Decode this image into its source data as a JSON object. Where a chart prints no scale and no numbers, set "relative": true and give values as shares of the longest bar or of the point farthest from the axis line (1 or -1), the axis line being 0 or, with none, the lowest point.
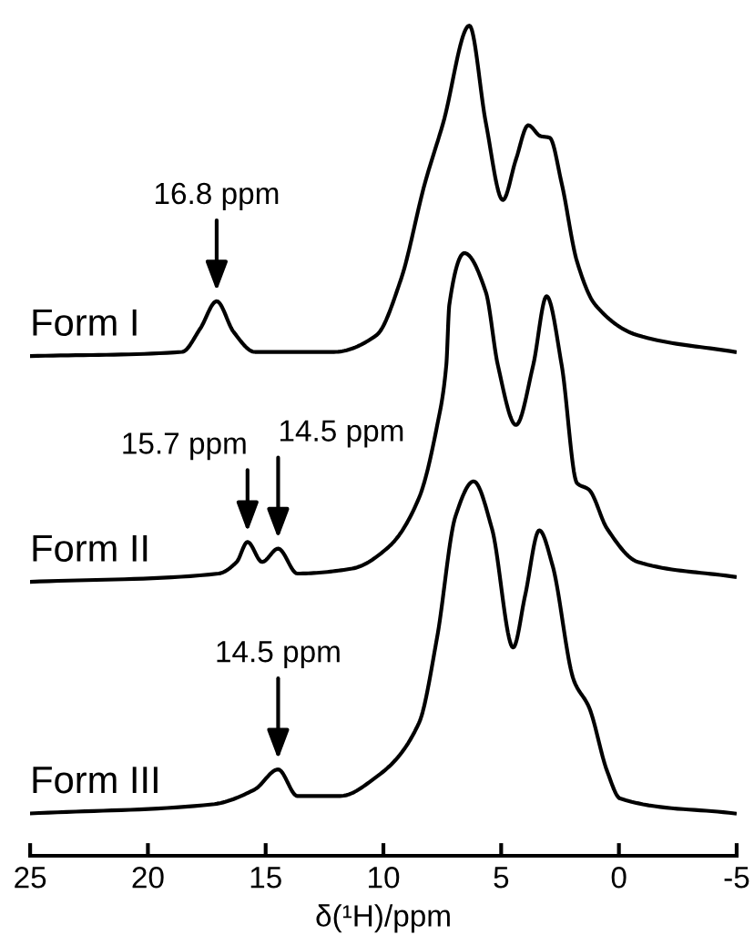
{
  "chart_data": {
    "type": "line",
    "relative": true,
    "xlabel": "δ(¹H)/ppm",
    "xlim": [
      25,
      -5
    ],
    "xticks": [
      25,
      20,
      15,
      10,
      5,
      0,
      {
        "value": -5,
        "label": "-5"
      }
    ],
    "grid": false,
    "legend": false,
    "marker": "none",
    "line_style": "solid",
    "series": [
      {
        "name": "Form I",
        "color": "#000000",
        "x": [
          25,
          18.55,
          17.78,
          17.08,
          16.36,
          15.46,
          12.1,
          10.3,
          9.26,
          8.24,
          7.46,
          6.35,
          5.65,
          4.93,
          4.37,
          3.85,
          3.33,
          2.94,
          2.43,
          1.78,
          1.01,
          -0.8,
          -4.92
        ],
        "values": [
          0.602,
          0.607,
          0.635,
          0.668,
          0.631,
          0.607,
          0.607,
          0.627,
          0.694,
          0.81,
          0.883,
          1.0,
          0.883,
          0.79,
          0.839,
          0.88,
          0.867,
          0.865,
          0.81,
          0.716,
          0.664,
          0.627,
          0.607
        ]
      },
      {
        "name": "Form II",
        "color": "#000000",
        "x": [
          25,
          17.0,
          16.23,
          15.77,
          15.15,
          14.47,
          13.65,
          11.33,
          9.78,
          8.49,
          7.72,
          7.33,
          7.2,
          6.56,
          5.65,
          5.14,
          4.37,
          3.64,
          3.07,
          2.43,
          1.78,
          1.27,
          0.5,
          -0.8,
          -4.92
        ],
        "values": [
          0.33,
          0.34,
          0.354,
          0.378,
          0.354,
          0.37,
          0.34,
          0.346,
          0.372,
          0.431,
          0.518,
          0.591,
          0.664,
          0.726,
          0.679,
          0.591,
          0.519,
          0.591,
          0.674,
          0.591,
          0.449,
          0.441,
          0.394,
          0.354,
          0.336
        ]
      },
      {
        "name": "Form III",
        "color": "#000000",
        "x": [
          25,
          17.26,
          15.46,
          14.47,
          13.65,
          11.84,
          10.3,
          8.49,
          7.72,
          6.94,
          6.17,
          5.39,
          4.49,
          3.98,
          3.38,
          2.82,
          1.91,
          1.27,
          0.5,
          -0.05,
          -4.92
        ],
        "values": [
          0.051,
          0.062,
          0.08,
          0.104,
          0.072,
          0.072,
          0.095,
          0.16,
          0.263,
          0.409,
          0.451,
          0.394,
          0.251,
          0.314,
          0.392,
          0.35,
          0.211,
          0.179,
          0.102,
          0.069,
          0.051
        ]
      }
    ],
    "annotations": [
      {
        "text": "16.8 ppm",
        "x": 17.08,
        "y": 0.668
      },
      {
        "text": "15.7 ppm",
        "x": 15.77,
        "y": 0.378
      },
      {
        "text": "14.5 ppm",
        "x": 14.47,
        "y": 0.37
      },
      {
        "text": "14.5 ppm",
        "x": 14.47,
        "y": 0.104
      }
    ]
  }
}
